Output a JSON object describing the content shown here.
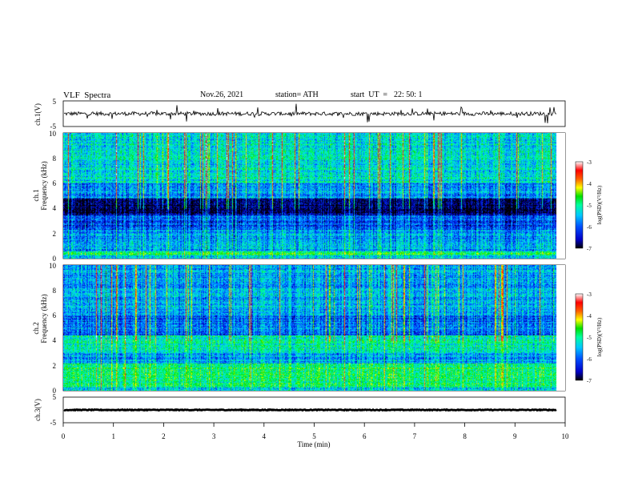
{
  "header": {
    "title": "VLF  Spectra",
    "date": "Nov.26, 2021",
    "station": "station= ATH",
    "start_label": "start  UT  =",
    "start_time": "22: 50: 1"
  },
  "chart_data": [
    {
      "type": "line",
      "panel": "ch1-waveform",
      "ylabel": "ch.1(V)",
      "yticks": [
        "5",
        "-5"
      ],
      "ylim": [
        -5,
        5
      ],
      "series": [
        {
          "baseline_v": 0,
          "noise_amplitude_v": 1.5
        }
      ],
      "color": "#000000"
    },
    {
      "type": "heatmap",
      "panel": "ch1-spectrogram",
      "ylabel_line1": "ch.1",
      "ylabel_line2": "Frequency  (kHz)",
      "yticks": [
        "0",
        "2",
        "4",
        "6",
        "8",
        "10"
      ],
      "ylim": [
        0,
        10
      ],
      "colorbar": {
        "label": "log(PSD)(V²/Hz)",
        "ticks": [
          "-3",
          "-4",
          "-5",
          "-6",
          "-7"
        ],
        "range": [
          -7,
          -3
        ]
      }
    },
    {
      "type": "heatmap",
      "panel": "ch2-spectrogram",
      "ylabel_line1": "ch.2",
      "ylabel_line2": "Frequency  (kHz)",
      "yticks": [
        "0",
        "2",
        "4",
        "6",
        "8",
        "10"
      ],
      "ylim": [
        0,
        10
      ],
      "colorbar": {
        "label": "log(PSD)(V²/Hz)",
        "ticks": [
          "-3",
          "-4",
          "-5",
          "-6",
          "-7"
        ],
        "range": [
          -7,
          -3
        ]
      }
    },
    {
      "type": "line",
      "panel": "ch3-waveform",
      "ylabel": "ch.3(V)",
      "yticks": [
        "5",
        "-5"
      ],
      "ylim": [
        -5,
        5
      ],
      "series": [
        {
          "baseline_v": 0,
          "noise_amplitude_v": 0.3
        }
      ],
      "color": "#000000"
    }
  ],
  "xaxis": {
    "label": "Time  (min)",
    "ticks": [
      "0",
      "1",
      "2",
      "3",
      "4",
      "5",
      "6",
      "7",
      "8",
      "9",
      "10"
    ],
    "xlim": [
      0,
      10
    ],
    "data_end_min": 9.83
  },
  "colors": {
    "background": "#ffffff",
    "axes": "#000000",
    "colormap": [
      "#000000",
      "#0000c8",
      "#0050ff",
      "#00c8ff",
      "#00ffa0",
      "#00e000",
      "#ffff00",
      "#ff6000",
      "#ff0000",
      "#ffffff"
    ]
  }
}
